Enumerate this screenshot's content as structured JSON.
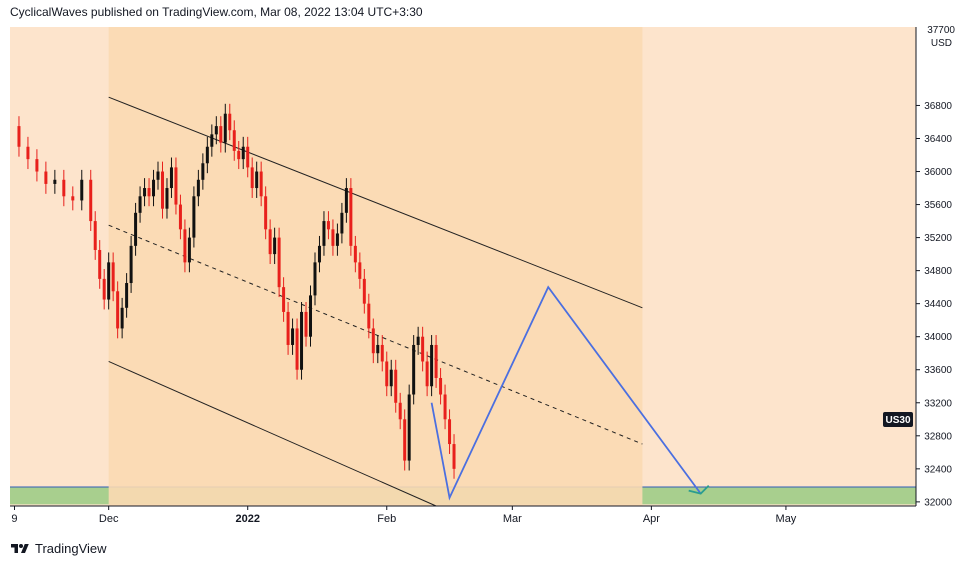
{
  "header": {
    "attribution": "CyclicalWaves published on TradingView.com, Mar 08, 2022 13:04 UTC+3:30"
  },
  "footer": {
    "brand": "TradingView",
    "logo_icon": "tradingview-logo-icon"
  },
  "colors": {
    "background": "#fde4cc",
    "channel_fill": "#fbd9b3",
    "support_zone": "#a8cf8e",
    "candle_down": "#e8201c",
    "candle_up": "#111111",
    "projection": "#4b6fe0",
    "channel_line": "#222222",
    "symbol_badge": "#131722"
  },
  "chart_data": {
    "type": "candlestick",
    "symbol_badge": "US30",
    "currency": "USD",
    "ylim": [
      31950,
      37750
    ],
    "y_ticks": [
      32000,
      32400,
      32800,
      33200,
      33600,
      34000,
      34400,
      34800,
      35200,
      35600,
      36000,
      36400,
      36800
    ],
    "y_top_label": "37700",
    "x_tick_labels": [
      "9",
      "Dec",
      "2022",
      "Feb",
      "Mar",
      "Apr",
      "May"
    ],
    "x_ticks_days": [
      -21,
      0,
      31,
      62,
      90,
      121,
      151
    ],
    "xlim_days": [
      -22,
      180
    ],
    "series": [
      {
        "name": "price",
        "points": [
          [
            -22,
            36550
          ],
          [
            -20,
            36300
          ],
          [
            -18,
            36150
          ],
          [
            -16,
            36000
          ],
          [
            -14,
            35850
          ],
          [
            -12,
            35900
          ],
          [
            -10,
            35700
          ],
          [
            -8,
            35650
          ],
          [
            -6,
            35900
          ],
          [
            -4,
            35400
          ],
          [
            -3,
            35050
          ],
          [
            -2,
            34700
          ],
          [
            -1,
            34450
          ],
          [
            0,
            34900
          ],
          [
            1,
            34550
          ],
          [
            2,
            34100
          ],
          [
            3,
            34350
          ],
          [
            4,
            34650
          ],
          [
            5,
            35100
          ],
          [
            6,
            35500
          ],
          [
            7,
            35700
          ],
          [
            8,
            35800
          ],
          [
            9,
            35700
          ],
          [
            10,
            35900
          ],
          [
            11,
            36000
          ],
          [
            12,
            35550
          ],
          [
            13,
            35800
          ],
          [
            14,
            36050
          ],
          [
            15,
            35600
          ],
          [
            16,
            35300
          ],
          [
            17,
            34900
          ],
          [
            18,
            35200
          ],
          [
            19,
            35700
          ],
          [
            20,
            35900
          ],
          [
            21,
            36100
          ],
          [
            22,
            36300
          ],
          [
            23,
            36450
          ],
          [
            24,
            36550
          ],
          [
            25,
            36350
          ],
          [
            26,
            36700
          ],
          [
            27,
            36500
          ],
          [
            28,
            36250
          ],
          [
            29,
            36150
          ],
          [
            30,
            36300
          ],
          [
            31,
            36050
          ],
          [
            32,
            35800
          ],
          [
            33,
            36000
          ],
          [
            34,
            35700
          ],
          [
            35,
            35300
          ],
          [
            36,
            35000
          ],
          [
            37,
            35200
          ],
          [
            38,
            34600
          ],
          [
            39,
            34300
          ],
          [
            40,
            33900
          ],
          [
            41,
            34100
          ],
          [
            42,
            33600
          ],
          [
            43,
            34300
          ],
          [
            44,
            34000
          ],
          [
            45,
            34500
          ],
          [
            46,
            34900
          ],
          [
            47,
            35100
          ],
          [
            48,
            35400
          ],
          [
            49,
            35300
          ],
          [
            50,
            35100
          ],
          [
            51,
            35250
          ],
          [
            52,
            35500
          ],
          [
            53,
            35800
          ],
          [
            54,
            35100
          ],
          [
            55,
            34900
          ],
          [
            56,
            34700
          ],
          [
            57,
            34400
          ],
          [
            58,
            34100
          ],
          [
            59,
            33800
          ],
          [
            60,
            33900
          ],
          [
            61,
            33700
          ],
          [
            62,
            33400
          ],
          [
            63,
            33600
          ],
          [
            64,
            33200
          ],
          [
            65,
            33000
          ],
          [
            66,
            32500
          ],
          [
            67,
            33300
          ],
          [
            68,
            33900
          ],
          [
            69,
            34000
          ],
          [
            70,
            33700
          ],
          [
            71,
            33400
          ],
          [
            72,
            33900
          ],
          [
            73,
            33500
          ],
          [
            74,
            33300
          ],
          [
            75,
            33000
          ],
          [
            76,
            32700
          ],
          [
            77,
            32400
          ]
        ]
      }
    ],
    "channel": {
      "upper": [
        [
          0,
          36900
        ],
        [
          119,
          34350
        ]
      ],
      "lower": [
        [
          0,
          33700
        ],
        [
          73,
          31950
        ]
      ],
      "midline": [
        [
          0,
          35350
        ],
        [
          119,
          32700
        ]
      ],
      "shaded_range_days": [
        0,
        119
      ]
    },
    "projection_path": [
      [
        72,
        33200
      ],
      [
        76,
        32050
      ],
      [
        98,
        34600
      ],
      [
        132,
        32100
      ]
    ],
    "support_zone": [
      31970,
      32180
    ]
  }
}
